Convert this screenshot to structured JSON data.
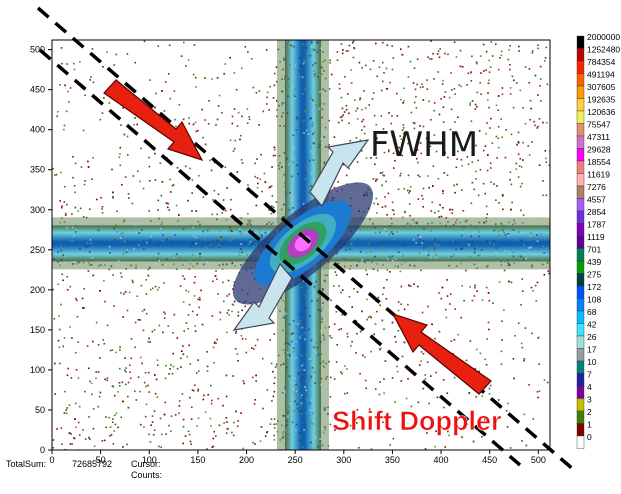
{
  "chart_data": {
    "type": "heatmap",
    "title": "",
    "xlabel": "",
    "ylabel": "",
    "xlim": [
      0,
      512
    ],
    "ylim": [
      0,
      512
    ],
    "x_ticks": [
      "0",
      "50",
      "100",
      "150",
      "200",
      "250",
      "300",
      "350",
      "400",
      "450",
      "500"
    ],
    "y_ticks": [
      "0",
      "50",
      "100",
      "150",
      "200",
      "250",
      "300",
      "350",
      "400",
      "450",
      "500"
    ],
    "peak": {
      "x": 258,
      "y": 258
    },
    "horizontal_band": {
      "y": 258
    },
    "vertical_band": {
      "x": 258
    },
    "colorbar": {
      "labels": [
        "2000000",
        "1252480",
        "784354",
        "491194",
        "307605",
        "192635",
        "120636",
        "75547",
        "47311",
        "29628",
        "18554",
        "11619",
        "7276",
        "4557",
        "2854",
        "1787",
        "1119",
        "701",
        "439",
        "275",
        "172",
        "108",
        "68",
        "42",
        "26",
        "17",
        "10",
        "7",
        "4",
        "3",
        "2",
        "1",
        "0"
      ],
      "colors": [
        "#000000",
        "#c00000",
        "#ff2000",
        "#ff6000",
        "#ff9a00",
        "#ffcf40",
        "#f0f060",
        "#e09070",
        "#d070c0",
        "#ff00ff",
        "#f08080",
        "#ffb0b0",
        "#b08060",
        "#a060ff",
        "#7030e0",
        "#8000c0",
        "#600090",
        "#008060",
        "#00a000",
        "#004040",
        "#0050ff",
        "#0080ff",
        "#00c0ff",
        "#40e0ff",
        "#a0e0e0",
        "#90a0a0",
        "#008080",
        "#2020a0",
        "#8000a0",
        "#c0c000",
        "#408000",
        "#800000",
        "#ffffff"
      ]
    },
    "annotations": {
      "fwhm_label": "FWHM",
      "shift_label": "Shift Doppler"
    }
  },
  "status": {
    "totalsum_label": "TotalSum:",
    "totalsum_value": "72685792",
    "cursor_label": "Cursor:",
    "counts_label": "Counts:"
  }
}
